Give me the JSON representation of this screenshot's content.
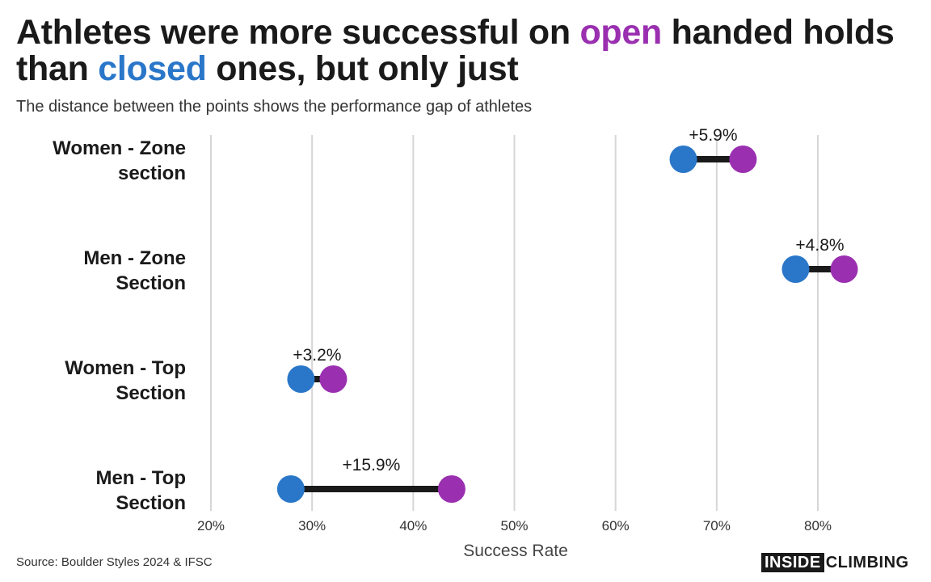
{
  "header": {
    "title_part1": "Athletes were more successful on ",
    "title_open": "open",
    "title_part2": " handed holds than ",
    "title_closed": "closed",
    "title_part3": " ones, but only just",
    "subtitle": "The distance between the points shows the performance gap of athletes"
  },
  "colors": {
    "open": "#9a2fb0",
    "closed": "#2a77c9",
    "connector": "#1a1a1a",
    "grid": "#d6d6d6"
  },
  "chart_data": {
    "type": "dumbbell",
    "title": "Athletes were more successful on open handed holds than closed ones, but only just",
    "subtitle": "The distance between the points shows the performance gap of athletes",
    "xlabel": "Success Rate",
    "xlim": [
      20,
      80
    ],
    "xticks": [
      "20%",
      "30%",
      "40%",
      "50%",
      "60%",
      "70%",
      "80%"
    ],
    "grid": true,
    "categories": [
      [
        "Women - Zone",
        "section"
      ],
      [
        "Men - Zone",
        "Section"
      ],
      [
        "Women - Top",
        "Section"
      ],
      [
        "Men - Top",
        "Section"
      ]
    ],
    "series": [
      {
        "key": "closed",
        "values": [
          66.7,
          77.8,
          28.9,
          27.9
        ]
      },
      {
        "key": "open",
        "values": [
          72.6,
          82.6,
          32.1,
          43.8
        ]
      }
    ],
    "labels": [
      "+5.9%",
      "+4.8%",
      "+3.2%",
      "+15.9%"
    ]
  },
  "footer": {
    "source": "Source: Boulder Styles 2024 & IFSC",
    "logo_inside": "INSIDE",
    "logo_climbing": "CLIMBING"
  }
}
